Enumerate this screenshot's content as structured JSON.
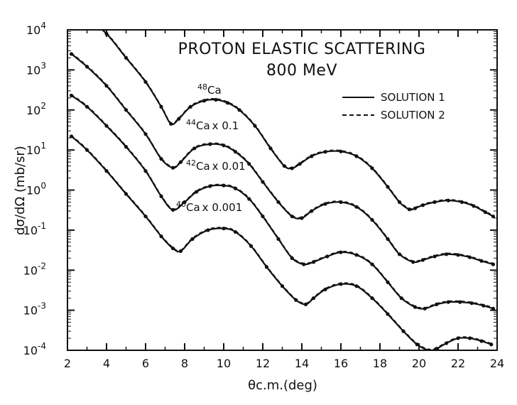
{
  "chart_data": {
    "type": "line",
    "title": "PROTON ELASTIC SCATTERING",
    "subtitle": "800 MeV",
    "xlabel": "θc.m.(deg)",
    "ylabel": "dσ/dΩ (mb/sr)",
    "xlim": [
      2,
      24
    ],
    "ylim": [
      0.0001,
      10000
    ],
    "y_scale": "log",
    "x_ticks": [
      2,
      4,
      6,
      8,
      10,
      12,
      14,
      16,
      18,
      20,
      22,
      24
    ],
    "y_ticks": [
      {
        "base": "10",
        "exp": "-4"
      },
      {
        "base": "10",
        "exp": "-3"
      },
      {
        "base": "10",
        "exp": "-2"
      },
      {
        "base": "10",
        "exp": "-1"
      },
      {
        "base": "10",
        "exp": "0"
      },
      {
        "base": "10",
        "exp": "1"
      },
      {
        "base": "10",
        "exp": "2"
      },
      {
        "base": "10",
        "exp": "3"
      },
      {
        "base": "10",
        "exp": "4"
      }
    ],
    "legend": {
      "placement": "top-right",
      "entries": [
        {
          "label": "SOLUTION 1",
          "style": "solid"
        },
        {
          "label": "SOLUTION 2",
          "style": "dashed"
        }
      ]
    },
    "series": [
      {
        "mass": "48",
        "name": "Ca",
        "scale": "",
        "x": [
          3.0,
          4.0,
          5.0,
          6.0,
          6.8,
          7.3,
          7.7,
          8.3,
          9.0,
          9.6,
          10.2,
          10.8,
          11.6,
          12.4,
          13.1,
          13.5,
          13.9,
          14.5,
          15.2,
          16.0,
          16.8,
          17.6,
          18.4,
          19.0,
          19.5,
          19.8,
          20.2,
          20.8,
          21.5,
          22.2,
          22.8,
          23.4,
          23.8
        ],
        "y": [
          20000,
          8000,
          2000,
          500,
          120,
          45,
          60,
          120,
          170,
          180,
          150,
          100,
          40,
          11,
          4,
          3.5,
          4.5,
          7,
          9,
          9.2,
          7,
          3.5,
          1.2,
          0.5,
          0.33,
          0.35,
          0.42,
          0.5,
          0.55,
          0.5,
          0.4,
          0.28,
          0.22
        ]
      },
      {
        "mass": "44",
        "name": "Ca",
        "scale": "x 0.1",
        "x": [
          2.2,
          3.0,
          4.0,
          5.0,
          6.0,
          6.8,
          7.4,
          7.8,
          8.5,
          9.3,
          10.0,
          10.6,
          11.3,
          12.0,
          12.8,
          13.5,
          14.0,
          14.5,
          15.2,
          16.0,
          16.8,
          17.6,
          18.4,
          19.0,
          19.7,
          20.2,
          20.8,
          21.4,
          22.0,
          22.6,
          23.2,
          23.8
        ],
        "y": [
          2500,
          1200,
          400,
          100,
          25,
          6,
          3.6,
          5,
          11,
          14,
          13,
          9,
          4.5,
          1.6,
          0.5,
          0.22,
          0.2,
          0.3,
          0.45,
          0.5,
          0.38,
          0.18,
          0.06,
          0.025,
          0.016,
          0.018,
          0.022,
          0.025,
          0.024,
          0.021,
          0.017,
          0.014
        ]
      },
      {
        "mass": "42",
        "name": "Ca",
        "scale": "x 0.01",
        "x": [
          2.2,
          3.0,
          4.0,
          5.0,
          6.0,
          6.8,
          7.4,
          8.0,
          8.6,
          9.3,
          10.0,
          10.6,
          11.3,
          12.0,
          12.8,
          13.5,
          14.1,
          14.6,
          15.3,
          16.0,
          16.8,
          17.6,
          18.4,
          19.1,
          19.8,
          20.3,
          20.9,
          21.5,
          22.1,
          22.7,
          23.3,
          23.8
        ],
        "y": [
          230,
          120,
          40,
          12,
          3,
          0.7,
          0.32,
          0.5,
          0.9,
          1.25,
          1.3,
          1.1,
          0.6,
          0.22,
          0.06,
          0.02,
          0.014,
          0.016,
          0.022,
          0.028,
          0.024,
          0.014,
          0.005,
          0.002,
          0.0012,
          0.0011,
          0.0014,
          0.0016,
          0.0016,
          0.0015,
          0.0013,
          0.0011
        ]
      },
      {
        "mass": "40",
        "name": "Ca",
        "scale": "x 0.001",
        "x": [
          2.2,
          3.0,
          4.0,
          5.0,
          6.0,
          6.8,
          7.4,
          7.8,
          8.4,
          9.2,
          10.0,
          10.6,
          11.4,
          12.2,
          13.0,
          13.7,
          14.2,
          14.6,
          15.2,
          16.0,
          16.8,
          17.6,
          18.4,
          19.2,
          19.9,
          20.5,
          20.9,
          21.4,
          22.0,
          22.6,
          23.2,
          23.7
        ],
        "y": [
          22,
          10,
          3,
          0.8,
          0.22,
          0.07,
          0.035,
          0.03,
          0.06,
          0.1,
          0.11,
          0.09,
          0.04,
          0.012,
          0.004,
          0.0018,
          0.0014,
          0.002,
          0.0033,
          0.0045,
          0.004,
          0.002,
          0.0008,
          0.0003,
          0.00014,
          0.0001,
          0.00011,
          0.00015,
          0.0002,
          0.0002,
          0.00017,
          0.00014
        ]
      }
    ]
  },
  "colors": {
    "ink": "#111111",
    "background": "#ffffff"
  }
}
